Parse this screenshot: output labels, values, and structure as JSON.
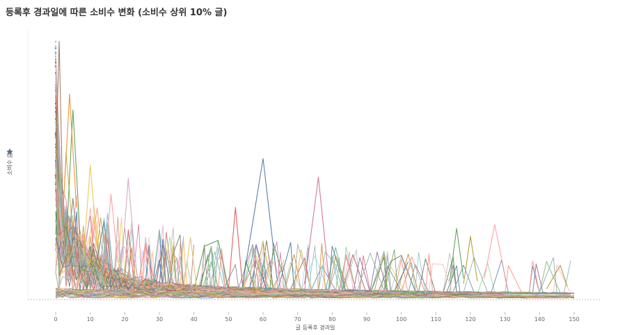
{
  "chart_data": {
    "type": "line",
    "title": "등록후 경과일에 따른 소비수 변화 (소비수 상위 10% 글)",
    "xlabel": "글 등록후 경과일",
    "ylabel": "소비수 글",
    "x_ticks": [
      0,
      10,
      20,
      30,
      40,
      50,
      60,
      70,
      80,
      90,
      100,
      110,
      120,
      130,
      140,
      150
    ],
    "xlim": [
      -8,
      157
    ],
    "ylim": [
      0,
      100
    ],
    "grid": false,
    "legend": "none",
    "palette": [
      "#4e79a7",
      "#f28e2b",
      "#e15759",
      "#76b7b2",
      "#59a14f",
      "#edc948",
      "#b07aa1",
      "#ff9da7",
      "#9c755f",
      "#bab0ac",
      "#a0cbe8",
      "#ffbe7d",
      "#8cd17d",
      "#b6992d",
      "#499894",
      "#86bcb6",
      "#d37295",
      "#fabfd2",
      "#79706e",
      "#d4a6c8"
    ],
    "notable_series": [
      {
        "x": [
          54,
          60,
          64
        ],
        "y": [
          5,
          53.5,
          8
        ],
        "color": "#4e79a7"
      },
      {
        "x": [
          72,
          76,
          79
        ],
        "y": [
          6,
          46.5,
          8
        ],
        "color": "#d37295"
      },
      {
        "x": [
          50,
          52,
          54
        ],
        "y": [
          4,
          35,
          6
        ],
        "color": "#e15759"
      },
      {
        "x": [
          114,
          116,
          118
        ],
        "y": [
          7,
          27,
          8
        ],
        "color": "#59a14f"
      },
      {
        "x": [
          124,
          127,
          130
        ],
        "y": [
          8,
          28.5,
          9
        ],
        "color": "#ff9da7"
      },
      {
        "x": [
          118,
          120,
          122
        ],
        "y": [
          6,
          24,
          7
        ],
        "color": "#b6992d"
      },
      {
        "x": [
          142,
          146,
          148
        ],
        "y": [
          4,
          13,
          5
        ],
        "color": "#b6992d"
      },
      {
        "x": [
          3,
          5,
          7
        ],
        "y": [
          20,
          72,
          25
        ],
        "color": "#59a14f"
      },
      {
        "x": [
          2,
          4,
          6
        ],
        "y": [
          30,
          78,
          35
        ],
        "color": "#f28e2b"
      },
      {
        "x": [
          0,
          1,
          2
        ],
        "y": [
          50,
          98,
          40
        ],
        "color": "#9c755f"
      },
      {
        "x": [
          8,
          10,
          12
        ],
        "y": [
          15,
          51,
          20
        ],
        "color": "#edc948"
      },
      {
        "x": [
          19,
          21,
          23
        ],
        "y": [
          12,
          46,
          15
        ],
        "color": "#d4a6c8"
      },
      {
        "x": [
          14,
          16,
          18
        ],
        "y": [
          10,
          40,
          14
        ],
        "color": "#ff9da7"
      }
    ]
  }
}
